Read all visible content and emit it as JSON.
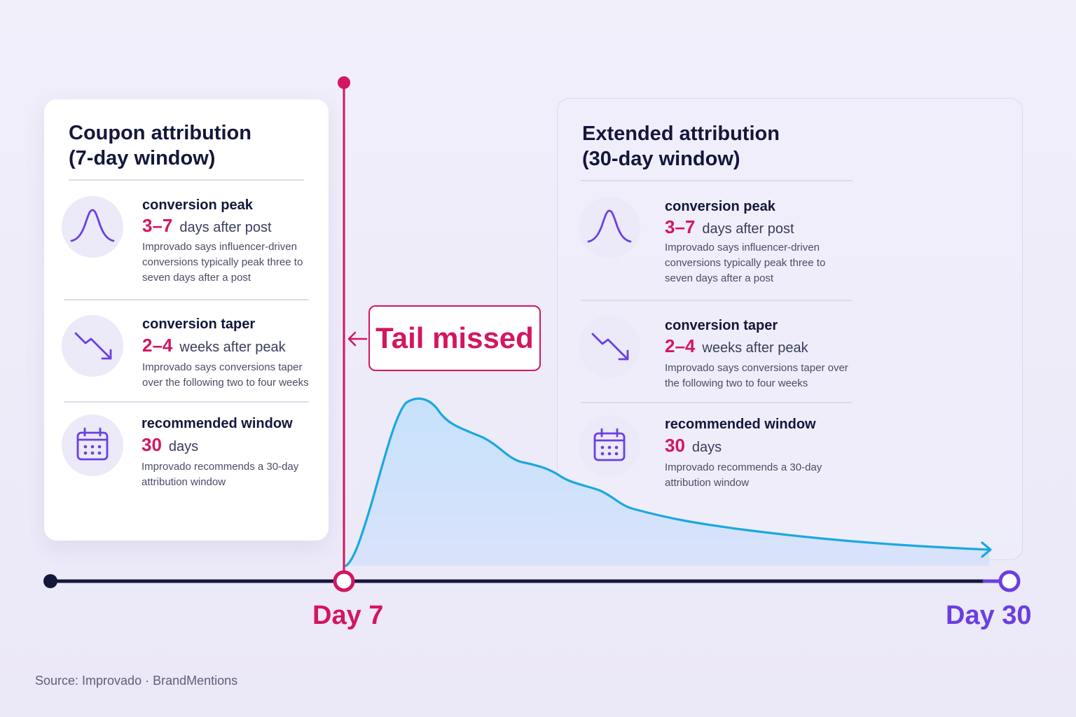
{
  "left_card": {
    "title_line1": "Coupon attribution",
    "title_line2": "(7-day window)",
    "metrics": [
      {
        "icon": "bell-curve-icon",
        "heading": "conversion peak",
        "value": "3–7",
        "unit": "days after post",
        "note": "Improvado says influencer-driven conversions typically peak three to seven days after a post"
      },
      {
        "icon": "trend-down-icon",
        "heading": "conversion taper",
        "value": "2–4",
        "unit": "weeks after peak",
        "note": "Improvado says conversions taper over the following two to four weeks"
      },
      {
        "icon": "calendar-icon",
        "heading": "recommended window",
        "value": "30",
        "unit": "days",
        "note": "Improvado recommends a 30-day attribution window"
      }
    ]
  },
  "right_card": {
    "title_line1": "Extended attribution",
    "title_line2": "(30-day window)",
    "metrics": [
      {
        "icon": "bell-curve-icon",
        "heading": "conversion peak",
        "value": "3–7",
        "unit": "days after post",
        "note": "Improvado says influencer-driven conversions typically peak three to seven days after a post"
      },
      {
        "icon": "trend-down-icon",
        "heading": "conversion taper",
        "value": "2–4",
        "unit": "weeks after peak",
        "note": "Improvado says conversions taper over the following two to four weeks"
      },
      {
        "icon": "calendar-icon",
        "heading": "recommended window",
        "value": "30",
        "unit": "days",
        "note": "Improvado recommends a 30-day attribution window"
      }
    ]
  },
  "callout": {
    "text": "Tail missed"
  },
  "timeline": {
    "day7_label": "Day 7",
    "day30_label": "Day 30"
  },
  "source": "Source: Improvado · BrandMentions",
  "colors": {
    "accent_pink": "#d3165f",
    "accent_purple": "#6a3fe0",
    "curve_blue": "#1aa8df",
    "navy": "#14163a",
    "background": "#efedf9"
  }
}
